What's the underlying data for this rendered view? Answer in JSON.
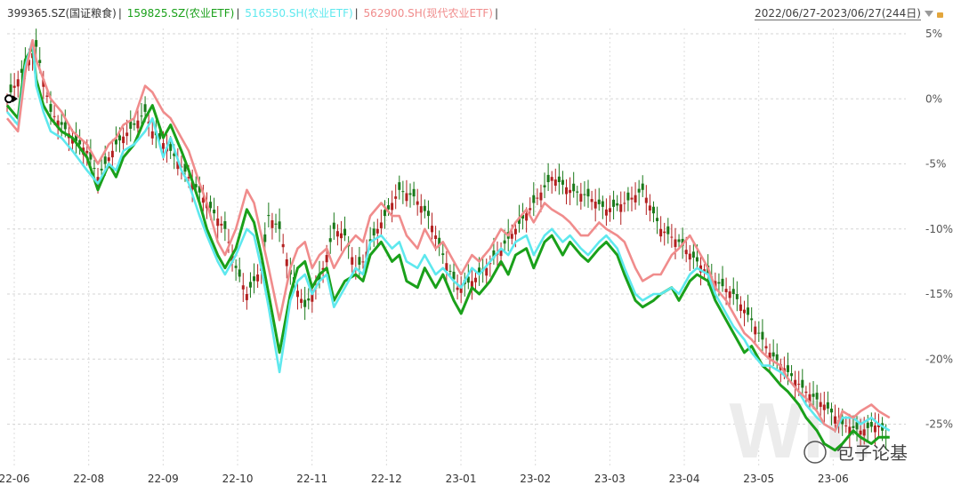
{
  "legend": {
    "items": [
      {
        "label": "399365.SZ(国证粮食)",
        "color": "#333333"
      },
      {
        "label": "159825.SZ(农业ETF)",
        "color": "#1aa01a"
      },
      {
        "label": "516550.SH(农业ETF)",
        "color": "#5ee8ee"
      },
      {
        "label": "562900.SH(现代农业ETF)",
        "color": "#f08c8c"
      }
    ],
    "separator": "|"
  },
  "date_range": "2022/06/27-2023/06/27(244日)",
  "watermark": {
    "text": "包子论基"
  },
  "chart_data": {
    "type": "line",
    "x_ticks": [
      "22-06",
      "22-08",
      "22-09",
      "22-10",
      "22-11",
      "22-12",
      "23-01",
      "23-02",
      "23-03",
      "23-04",
      "23-05",
      "23-06"
    ],
    "y_ticks": [
      "5%",
      "0%",
      "-5%",
      "-10%",
      "-15%",
      "-20%",
      "-25%"
    ],
    "ylim": [
      -27.9,
      5.0
    ],
    "xlim": [
      0,
      246
    ],
    "grid": true,
    "series": [
      {
        "name": "399365.SZ(国证粮食)",
        "color": "#1a1a1a",
        "style": "candlestick",
        "x": [
          0,
          8,
          10,
          12,
          15,
          18,
          22,
          25,
          30,
          35,
          38,
          40,
          45,
          50,
          55,
          60,
          63,
          66,
          70,
          72,
          75,
          78,
          82,
          86,
          90,
          93,
          96,
          98,
          100,
          104,
          108,
          112,
          116,
          120,
          124,
          128,
          132,
          136,
          140,
          145,
          150,
          155,
          160,
          165,
          170,
          175,
          180,
          185,
          190,
          195,
          200,
          205,
          210,
          215,
          220,
          225,
          230,
          235,
          240,
          243
        ],
        "y": [
          0.0,
          4.0,
          1.5,
          -1.0,
          -2.0,
          -3.0,
          -4.0,
          -6.0,
          -3.5,
          -2.0,
          -1.0,
          -2.5,
          -4.0,
          -6.0,
          -8.0,
          -10.0,
          -13.0,
          -15.0,
          -13.0,
          -9.0,
          -10.0,
          -13.5,
          -16.0,
          -14.0,
          -10.0,
          -10.5,
          -13.0,
          -12.5,
          -11.0,
          -9.0,
          -7.0,
          -7.5,
          -9.0,
          -12.0,
          -14.5,
          -14.0,
          -13.0,
          -11.5,
          -10.0,
          -8.0,
          -6.0,
          -7.0,
          -7.5,
          -8.5,
          -8.0,
          -7.0,
          -10.0,
          -11.0,
          -12.5,
          -14.0,
          -15.0,
          -17.0,
          -19.5,
          -21.0,
          -22.5,
          -23.5,
          -25.0,
          -25.5,
          -25.0,
          -26.5
        ]
      },
      {
        "name": "159825.SZ(农业ETF)",
        "color": "#1aa01a",
        "x": [
          0,
          3,
          5,
          7,
          8,
          10,
          12,
          15,
          18,
          22,
          25,
          28,
          30,
          32,
          35,
          38,
          40,
          43,
          45,
          48,
          50,
          53,
          55,
          58,
          60,
          63,
          66,
          68,
          70,
          72,
          75,
          78,
          80,
          82,
          84,
          86,
          88,
          90,
          93,
          96,
          98,
          100,
          103,
          106,
          108,
          110,
          113,
          115,
          118,
          120,
          123,
          125,
          128,
          130,
          133,
          136,
          138,
          140,
          143,
          145,
          148,
          150,
          153,
          155,
          158,
          160,
          163,
          165,
          168,
          170,
          173,
          175,
          178,
          180,
          183,
          185,
          188,
          190,
          193,
          195,
          198,
          200,
          203,
          205,
          208,
          210,
          213,
          215,
          218,
          220,
          223,
          225,
          228,
          230,
          233,
          235,
          238,
          240,
          243
        ],
        "y": [
          -0.5,
          -1.5,
          3.0,
          4.0,
          1.5,
          -0.5,
          -1.5,
          -2.5,
          -3.0,
          -4.5,
          -7.0,
          -5.0,
          -6.0,
          -4.5,
          -3.5,
          -1.5,
          -0.5,
          -3.0,
          -2.0,
          -4.0,
          -5.5,
          -8.0,
          -10.0,
          -12.0,
          -13.0,
          -11.5,
          -8.5,
          -9.5,
          -12.0,
          -15.0,
          -19.5,
          -15.0,
          -13.0,
          -12.5,
          -14.5,
          -13.5,
          -13.0,
          -15.5,
          -14.0,
          -13.5,
          -14.0,
          -12.0,
          -11.0,
          -12.5,
          -12.0,
          -14.0,
          -14.5,
          -13.0,
          -14.5,
          -13.5,
          -15.5,
          -16.5,
          -14.5,
          -15.0,
          -14.0,
          -12.5,
          -13.5,
          -12.0,
          -11.5,
          -13.0,
          -11.0,
          -10.5,
          -12.0,
          -11.0,
          -12.0,
          -12.5,
          -11.5,
          -11.0,
          -12.0,
          -13.5,
          -15.5,
          -16.0,
          -15.5,
          -15.0,
          -14.5,
          -15.5,
          -14.0,
          -13.5,
          -14.0,
          -15.5,
          -17.0,
          -18.0,
          -19.5,
          -19.0,
          -20.5,
          -21.0,
          -22.0,
          -22.5,
          -23.5,
          -24.5,
          -25.5,
          -26.5,
          -27.0,
          -26.5,
          -25.5,
          -26.0,
          -26.5,
          -26.0,
          -26.0
        ]
      },
      {
        "name": "516550.SH(农业ETF)",
        "color": "#5ee8ee",
        "x": [
          0,
          3,
          5,
          7,
          8,
          10,
          12,
          15,
          18,
          22,
          25,
          28,
          30,
          32,
          35,
          38,
          40,
          43,
          45,
          48,
          50,
          53,
          55,
          58,
          60,
          63,
          66,
          68,
          70,
          72,
          75,
          78,
          80,
          82,
          84,
          86,
          88,
          90,
          93,
          96,
          98,
          100,
          103,
          106,
          108,
          110,
          113,
          115,
          118,
          120,
          123,
          125,
          128,
          130,
          133,
          136,
          138,
          140,
          143,
          145,
          148,
          150,
          153,
          155,
          158,
          160,
          163,
          165,
          168,
          170,
          173,
          175,
          178,
          180,
          183,
          185,
          188,
          190,
          193,
          195,
          198,
          200,
          203,
          205,
          208,
          210,
          213,
          215,
          218,
          220,
          223,
          225,
          228,
          230,
          233,
          235,
          238,
          240,
          243
        ],
        "y": [
          -1.0,
          -2.0,
          2.5,
          4.5,
          1.0,
          -1.0,
          -2.5,
          -3.0,
          -4.0,
          -5.5,
          -6.5,
          -5.0,
          -5.5,
          -4.0,
          -3.5,
          -2.5,
          -1.5,
          -4.5,
          -3.0,
          -5.5,
          -6.5,
          -9.0,
          -10.5,
          -12.5,
          -13.5,
          -12.0,
          -10.0,
          -10.5,
          -13.0,
          -16.0,
          -21.0,
          -15.5,
          -14.0,
          -13.5,
          -15.0,
          -14.0,
          -13.5,
          -16.0,
          -14.5,
          -13.0,
          -13.5,
          -11.0,
          -10.5,
          -11.5,
          -11.0,
          -12.5,
          -13.0,
          -12.0,
          -13.5,
          -13.0,
          -14.0,
          -14.5,
          -13.0,
          -13.5,
          -12.5,
          -11.5,
          -12.0,
          -11.0,
          -10.5,
          -12.0,
          -10.5,
          -10.0,
          -11.0,
          -10.5,
          -11.5,
          -12.0,
          -11.0,
          -10.5,
          -11.5,
          -13.0,
          -15.0,
          -15.5,
          -15.0,
          -15.0,
          -14.5,
          -15.0,
          -13.5,
          -13.0,
          -13.5,
          -15.0,
          -16.5,
          -17.5,
          -18.5,
          -19.5,
          -20.5,
          -20.5,
          -21.0,
          -21.5,
          -22.5,
          -23.5,
          -24.5,
          -25.0,
          -25.5,
          -24.5,
          -24.5,
          -25.0,
          -24.5,
          -25.0,
          -25.5
        ]
      },
      {
        "name": "562900.SH(现代农业ETF)",
        "color": "#f08c8c",
        "x": [
          0,
          3,
          5,
          7,
          8,
          10,
          12,
          15,
          18,
          22,
          25,
          28,
          30,
          32,
          35,
          38,
          40,
          43,
          45,
          48,
          50,
          53,
          55,
          58,
          60,
          63,
          66,
          68,
          70,
          72,
          75,
          78,
          80,
          82,
          84,
          86,
          88,
          90,
          93,
          96,
          98,
          100,
          103,
          106,
          108,
          110,
          113,
          115,
          118,
          120,
          123,
          125,
          128,
          130,
          133,
          136,
          138,
          140,
          143,
          145,
          148,
          150,
          153,
          155,
          158,
          160,
          163,
          165,
          168,
          170,
          173,
          175,
          178,
          180,
          183,
          185,
          188,
          190,
          193,
          195,
          198,
          200,
          203,
          205,
          208,
          210,
          213,
          215,
          218,
          220,
          223,
          225,
          228,
          230,
          233,
          235,
          238,
          240,
          243
        ],
        "y": [
          -1.5,
          -2.5,
          2.0,
          4.5,
          3.0,
          1.5,
          0.0,
          -1.0,
          -2.5,
          -3.5,
          -5.0,
          -3.5,
          -3.0,
          -2.0,
          -1.5,
          1.0,
          0.5,
          -1.0,
          -1.5,
          -3.0,
          -4.0,
          -6.5,
          -8.0,
          -11.0,
          -12.0,
          -10.0,
          -7.0,
          -8.0,
          -10.5,
          -13.0,
          -17.0,
          -13.0,
          -11.5,
          -11.0,
          -13.0,
          -12.0,
          -11.5,
          -13.0,
          -11.5,
          -10.5,
          -11.0,
          -9.0,
          -8.0,
          -9.0,
          -9.0,
          -10.5,
          -11.5,
          -10.0,
          -11.5,
          -11.0,
          -12.5,
          -13.5,
          -12.0,
          -12.5,
          -11.5,
          -10.0,
          -10.5,
          -9.5,
          -8.5,
          -9.5,
          -8.0,
          -8.5,
          -9.0,
          -9.5,
          -10.5,
          -10.5,
          -9.5,
          -10.0,
          -10.5,
          -11.0,
          -13.0,
          -14.0,
          -13.5,
          -13.5,
          -12.0,
          -11.5,
          -10.5,
          -11.5,
          -13.0,
          -14.5,
          -15.5,
          -16.5,
          -18.0,
          -18.5,
          -19.5,
          -20.0,
          -20.5,
          -21.5,
          -22.5,
          -23.0,
          -24.0,
          -25.0,
          -25.5,
          -24.0,
          -24.5,
          -24.0,
          -23.5,
          -24.0,
          -24.5
        ]
      }
    ]
  }
}
